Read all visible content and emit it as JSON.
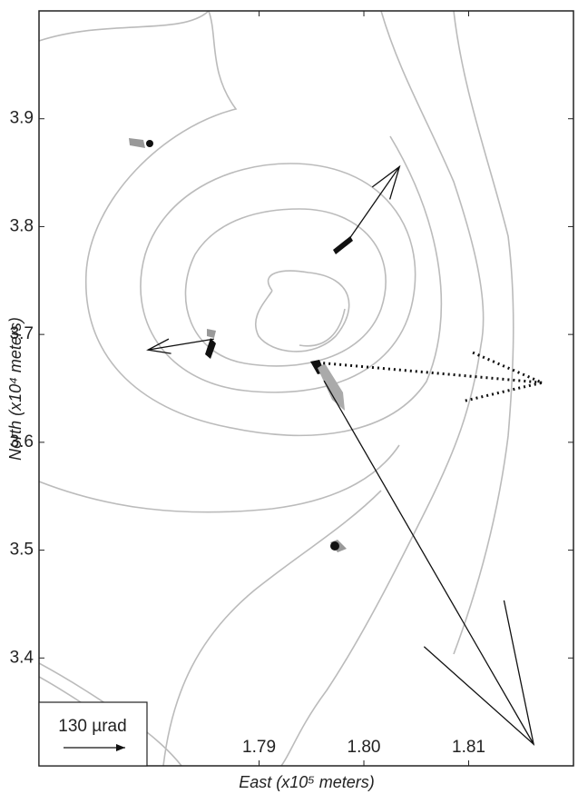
{
  "chart_data": {
    "type": "vector",
    "xlabel": "East (x10⁵ meters)",
    "ylabel": "North (x10⁴ meters)",
    "xlim": [
      1.769,
      1.82
    ],
    "ylim": [
      3.3,
      4.0
    ],
    "xticks": [
      1.79,
      {
        "value": 1.8,
        "label": "1.80"
      },
      1.81
    ],
    "yticks": [
      3.4,
      3.5,
      3.6,
      3.7,
      3.8,
      3.9
    ],
    "scale_label": "130 µrad",
    "vectors": [
      {
        "x": 1.7981,
        "y": 3.7815,
        "x_end": 1.8034,
        "y_end": 3.8556,
        "style": "solid"
      },
      {
        "x": 1.7857,
        "y": 3.6958,
        "x_end": 1.7794,
        "y_end": 3.6857,
        "style": "solid"
      },
      {
        "x": 1.7956,
        "y": 3.6739,
        "x_end": 1.817,
        "y_end": 3.6553,
        "style": "dotted"
      },
      {
        "x": 1.7962,
        "y": 3.657,
        "x_end": 1.8162,
        "y_end": 3.32,
        "style": "solid"
      }
    ]
  }
}
